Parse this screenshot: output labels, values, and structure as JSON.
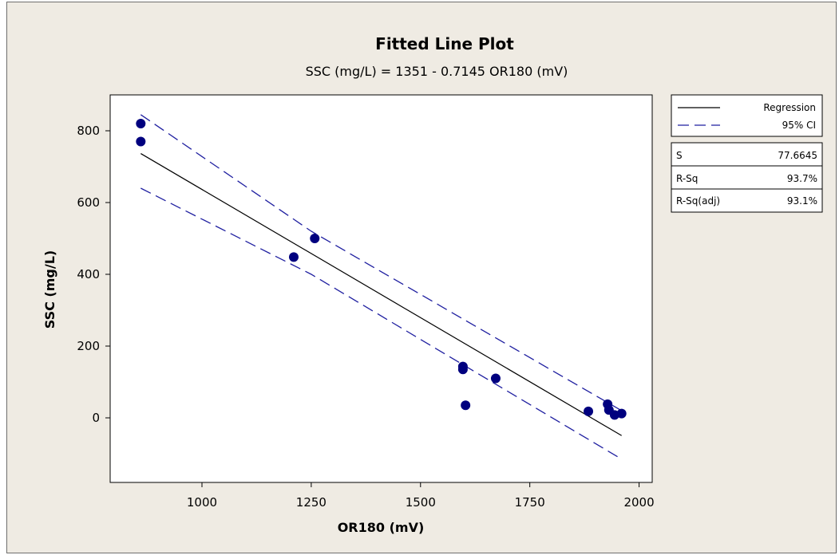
{
  "chart_data": {
    "type": "scatter",
    "title": "Fitted Line Plot",
    "subtitle": "SSC (mg/L) =  1351 - 0.7145 OR180 (mV)",
    "xlabel": "OR180 (mV)",
    "ylabel": "SSC (mg/L)",
    "xlim": [
      790,
      2030
    ],
    "ylim": [
      -180,
      900
    ],
    "xticks": [
      1000,
      1250,
      1500,
      1750,
      2000
    ],
    "yticks": [
      0,
      200,
      400,
      600,
      800
    ],
    "grid": false,
    "point_color": "#00007f",
    "line_color": "#000000",
    "ci_color": "#1f1fa0",
    "points": [
      {
        "x": 860,
        "y": 820
      },
      {
        "x": 860,
        "y": 770
      },
      {
        "x": 1210,
        "y": 448
      },
      {
        "x": 1258,
        "y": 500
      },
      {
        "x": 1597,
        "y": 143
      },
      {
        "x": 1597,
        "y": 135
      },
      {
        "x": 1603,
        "y": 35
      },
      {
        "x": 1672,
        "y": 110
      },
      {
        "x": 1884,
        "y": 18
      },
      {
        "x": 1928,
        "y": 38
      },
      {
        "x": 1931,
        "y": 22
      },
      {
        "x": 1944,
        "y": 8
      },
      {
        "x": 1960,
        "y": 12
      }
    ],
    "regression": {
      "intercept": 1351,
      "slope": -0.7145,
      "x_range": [
        860,
        1960
      ]
    },
    "ci_upper": [
      [
        860,
        845
      ],
      [
        1250,
        520
      ],
      [
        1960,
        20
      ]
    ],
    "ci_lower": [
      [
        860,
        640
      ],
      [
        1250,
        400
      ],
      [
        1960,
        -115
      ]
    ],
    "legend": {
      "position": "right",
      "items": [
        {
          "label": "Regression",
          "style": "solid"
        },
        {
          "label": "95% CI",
          "style": "dashed"
        }
      ]
    },
    "stats": [
      {
        "label": "S",
        "value": "77.6645"
      },
      {
        "label": "R-Sq",
        "value": "93.7%"
      },
      {
        "label": "R-Sq(adj)",
        "value": "93.1%"
      }
    ]
  }
}
